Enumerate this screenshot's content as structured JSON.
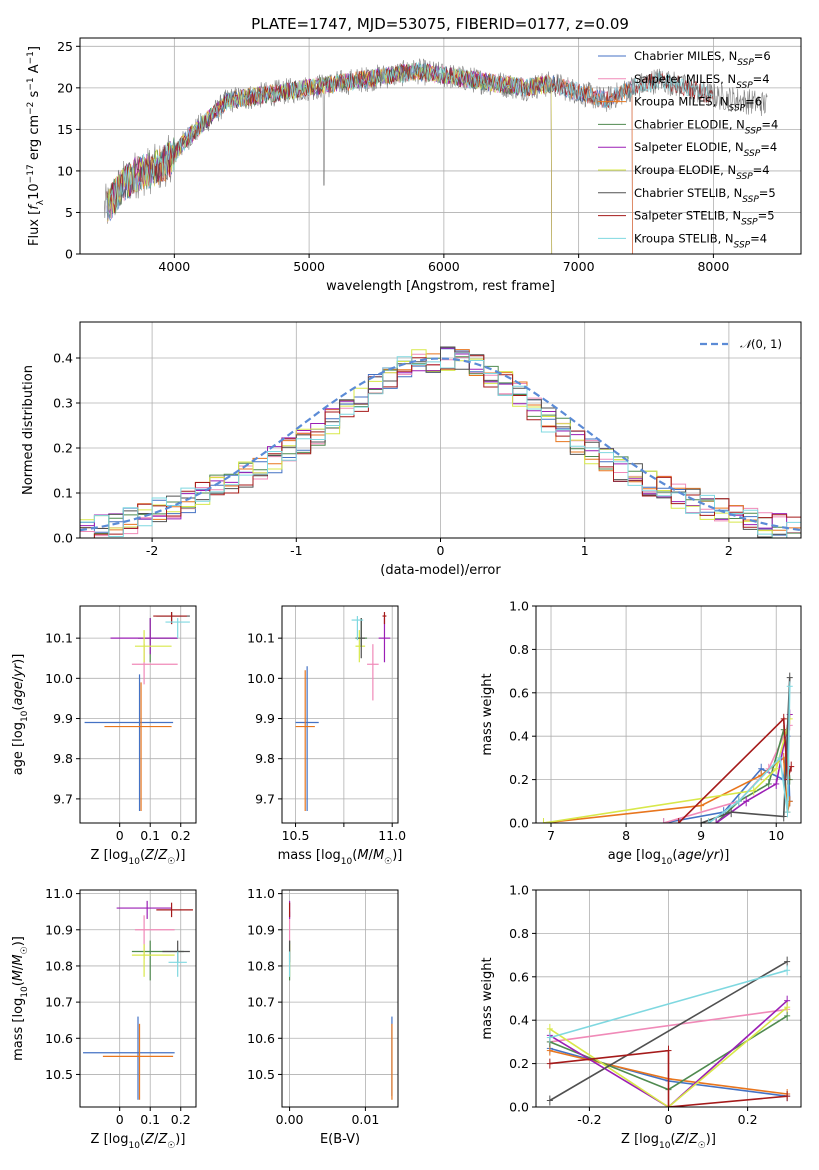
{
  "figure_title": "PLATE=1747, MJD=53075, FIBERID=0177, z=0.09",
  "colors": {
    "Chabrier MILES": "#4472c4",
    "Salpeter MILES": "#f08ab8",
    "Kroupa MILES": "#e8761e",
    "Chabrier ELODIE": "#4f8a4f",
    "Salpeter ELODIE": "#9b1fb5",
    "Kroupa ELODIE": "#d8e84a",
    "Chabrier STELIB": "#505050",
    "Salpeter STELIB": "#a51a1a",
    "Kroupa STELIB": "#7fd8e0"
  },
  "chart_data": [
    {
      "id": "spectrum",
      "type": "line",
      "title": "PLATE=1747, MJD=53075, FIBERID=0177, z=0.09",
      "xlabel": "wavelength [Angstrom, rest frame]",
      "ylabel_tex": "Flux [f_λ 10^-17 erg cm^-2 s^-1 A^-1]",
      "xlim": [
        3300,
        8650
      ],
      "ylim": [
        0,
        26
      ],
      "xticks": [
        4000,
        5000,
        6000,
        7000,
        8000
      ],
      "yticks": [
        0,
        5,
        10,
        15,
        20,
        25
      ],
      "continuum": [
        [
          3500,
          5.5
        ],
        [
          3600,
          8
        ],
        [
          3700,
          9.5
        ],
        [
          3800,
          10
        ],
        [
          3900,
          10.5
        ],
        [
          4000,
          12
        ],
        [
          4100,
          14
        ],
        [
          4200,
          15.5
        ],
        [
          4300,
          17
        ],
        [
          4400,
          18.5
        ],
        [
          4600,
          19
        ],
        [
          4800,
          19.5
        ],
        [
          5000,
          20
        ],
        [
          5200,
          20.5
        ],
        [
          5400,
          21
        ],
        [
          5600,
          21.5
        ],
        [
          5800,
          22
        ],
        [
          6000,
          21.5
        ],
        [
          6200,
          21
        ],
        [
          6400,
          20.5
        ],
        [
          6600,
          20
        ],
        [
          6800,
          20.5
        ],
        [
          7000,
          19.5
        ],
        [
          7200,
          18.5
        ],
        [
          7400,
          20
        ],
        [
          7600,
          21
        ],
        [
          7800,
          20
        ],
        [
          8000,
          19
        ],
        [
          8200,
          18.5
        ],
        [
          8400,
          18
        ]
      ],
      "legend_position": "upper right",
      "series": [
        {
          "name": "Chabrier MILES",
          "nssp": "6",
          "xmax": 7400
        },
        {
          "name": "Salpeter MILES",
          "nssp": "4",
          "xmax": 7400
        },
        {
          "name": "Kroupa MILES",
          "nssp": "6",
          "xmax": 7400
        },
        {
          "name": "Chabrier ELODIE",
          "nssp": "4",
          "xmax": 6800
        },
        {
          "name": "Salpeter ELODIE",
          "nssp": "4",
          "xmax": 6800
        },
        {
          "name": "Kroupa ELODIE",
          "nssp": "4",
          "xmax": 6800
        },
        {
          "name": "Chabrier STELIB",
          "nssp": "5",
          "xmax": 8000
        },
        {
          "name": "Salpeter STELIB",
          "nssp": "5",
          "xmax": 8000
        },
        {
          "name": "Kroupa STELIB",
          "nssp": "4",
          "xmax": 8000
        }
      ]
    },
    {
      "id": "residuals",
      "type": "bar",
      "xlabel": "(data-model)/error",
      "ylabel": "Normed distribution",
      "xlim": [
        -2.5,
        2.5
      ],
      "ylim": [
        0,
        0.48
      ],
      "xticks": [
        -2,
        -1,
        0,
        1,
        2
      ],
      "yticks": [
        0.0,
        0.1,
        0.2,
        0.3,
        0.4
      ],
      "reference_curve": {
        "label_tex": "N(0,1)",
        "type": "gaussian",
        "mu": 0,
        "sigma": 1
      },
      "legend_position": "upper right",
      "bin_edges_range": [
        -2.5,
        2.5
      ],
      "n_bins": 50
    },
    {
      "id": "age_vs_Z",
      "type": "scatter",
      "xlabel": "Z [log10(Z/Z☉)]",
      "ylabel": "age  [log10(age/yr)]",
      "xlim": [
        -0.13,
        0.25
      ],
      "ylim": [
        9.64,
        10.18
      ],
      "xticks": [
        0.0,
        0.1,
        0.2
      ],
      "yticks": [
        9.7,
        9.8,
        9.9,
        10.0,
        10.1
      ],
      "points": [
        {
          "series": "Chabrier MILES",
          "x": 0.065,
          "y": 9.89,
          "xerr": [
            0.18,
            0.11
          ],
          "yerr": [
            0.22,
            0.12
          ]
        },
        {
          "series": "Kroupa MILES",
          "x": 0.07,
          "y": 9.88,
          "xerr": [
            0.12,
            0.1
          ],
          "yerr": [
            0.21,
            0.11
          ]
        },
        {
          "series": "Salpeter MILES",
          "x": 0.08,
          "y": 10.035,
          "xerr": [
            0.04,
            0.11
          ],
          "yerr": [
            0.05,
            0.05
          ]
        },
        {
          "series": "Chabrier ELODIE",
          "x": 0.1,
          "y": 10.1,
          "xerr": [
            0.04,
            0.09
          ],
          "yerr": [
            0.06,
            0.05
          ]
        },
        {
          "series": "Salpeter ELODIE",
          "x": 0.1,
          "y": 10.1,
          "xerr": [
            0.13,
            0.09
          ],
          "yerr": [
            0.04,
            0.05
          ]
        },
        {
          "series": "Kroupa ELODIE",
          "x": 0.08,
          "y": 10.08,
          "xerr": [
            0.03,
            0.09
          ],
          "yerr": [
            0.04,
            0.04
          ]
        },
        {
          "series": "Chabrier STELIB",
          "x": 0.17,
          "y": 10.155,
          "xerr": [
            0.05,
            0.06
          ],
          "yerr": [
            0.02,
            0.01
          ]
        },
        {
          "series": "Salpeter STELIB",
          "x": 0.17,
          "y": 10.155,
          "xerr": [
            0.06,
            0.05
          ],
          "yerr": [
            0.02,
            0.01
          ]
        },
        {
          "series": "Kroupa STELIB",
          "x": 0.19,
          "y": 10.14,
          "xerr": [
            0.04,
            0.04
          ],
          "yerr": [
            0.04,
            0.01
          ]
        }
      ]
    },
    {
      "id": "age_vs_mass",
      "type": "scatter",
      "xlabel": "mass [log10(M/M☉)]",
      "ylabel": "",
      "xlim": [
        10.43,
        11.03
      ],
      "ylim": [
        9.64,
        10.18
      ],
      "xticks": [
        10.5,
        10.75,
        11.0
      ],
      "xticklabels": [
        "10.5",
        "",
        "11.0"
      ],
      "yticks": [
        9.7,
        9.8,
        9.9,
        10.0,
        10.1
      ],
      "points": [
        {
          "series": "Chabrier MILES",
          "x": 10.56,
          "y": 9.89,
          "xerr": [
            0.06,
            0.06
          ],
          "yerr": [
            0.22,
            0.14
          ]
        },
        {
          "series": "Kroupa MILES",
          "x": 10.55,
          "y": 9.88,
          "xerr": [
            0.05,
            0.05
          ],
          "yerr": [
            0.21,
            0.14
          ]
        },
        {
          "series": "Salpeter MILES",
          "x": 10.9,
          "y": 10.035,
          "xerr": [
            0.03,
            0.03
          ],
          "yerr": [
            0.09,
            0.05
          ]
        },
        {
          "series": "Chabrier ELODIE",
          "x": 10.84,
          "y": 10.1,
          "xerr": [
            0.03,
            0.03
          ],
          "yerr": [
            0.02,
            0.05
          ]
        },
        {
          "series": "Salpeter ELODIE",
          "x": 10.96,
          "y": 10.1,
          "xerr": [
            0.03,
            0.03
          ],
          "yerr": [
            0.06,
            0.05
          ]
        },
        {
          "series": "Kroupa ELODIE",
          "x": 10.83,
          "y": 10.08,
          "xerr": [
            0.02,
            0.03
          ],
          "yerr": [
            0.04,
            0.04
          ]
        },
        {
          "series": "Chabrier STELIB",
          "x": 10.84,
          "y": 10.1,
          "xerr": [
            0.02,
            0.02
          ],
          "yerr": [
            0.05,
            0.05
          ]
        },
        {
          "series": "Salpeter STELIB",
          "x": 10.96,
          "y": 10.155,
          "xerr": [
            0.01,
            0.01
          ],
          "yerr": [
            0.02,
            0.01
          ]
        },
        {
          "series": "Kroupa STELIB",
          "x": 10.82,
          "y": 10.145,
          "xerr": [
            0.03,
            0.03
          ],
          "yerr": [
            0.05,
            0.01
          ]
        }
      ]
    },
    {
      "id": "massweight_vs_age",
      "type": "line",
      "xlabel": "age  [log10(age/yr)]",
      "ylabel": "mass weight",
      "xlim": [
        6.8,
        10.33
      ],
      "ylim": [
        0,
        1
      ],
      "xticks": [
        7,
        8,
        9,
        10
      ],
      "yticks": [
        0.0,
        0.2,
        0.4,
        0.6,
        0.8,
        1.0
      ],
      "series": [
        {
          "name": "Chabrier MILES",
          "x": [
            8.5,
            9.3,
            9.8,
            10.1,
            10.15,
            10.18
          ],
          "y": [
            0.0,
            0.05,
            0.25,
            0.2,
            0.4,
            0.1
          ]
        },
        {
          "name": "Salpeter MILES",
          "x": [
            8.5,
            9.5,
            9.9,
            10.1,
            10.18
          ],
          "y": [
            0.0,
            0.1,
            0.25,
            0.4,
            0.45
          ]
        },
        {
          "name": "Kroupa MILES",
          "x": [
            6.9,
            9.0,
            9.8,
            10.1,
            10.15,
            10.18
          ],
          "y": [
            0.0,
            0.08,
            0.22,
            0.3,
            0.05,
            0.1
          ]
        },
        {
          "name": "Chabrier ELODIE",
          "x": [
            9.2,
            9.5,
            9.9,
            10.1,
            10.18
          ],
          "y": [
            0.0,
            0.1,
            0.18,
            0.43,
            0.2
          ]
        },
        {
          "name": "Salpeter ELODIE",
          "x": [
            9.2,
            9.6,
            10.0,
            10.18
          ],
          "y": [
            0.0,
            0.1,
            0.18,
            0.5
          ]
        },
        {
          "name": "Kroupa ELODIE",
          "x": [
            6.9,
            9.7,
            10.0,
            10.18
          ],
          "y": [
            0.0,
            0.15,
            0.25,
            0.48
          ]
        },
        {
          "name": "Chabrier STELIB",
          "x": [
            9.0,
            9.4,
            10.1,
            10.18
          ],
          "y": [
            0.0,
            0.05,
            0.03,
            0.67
          ]
        },
        {
          "name": "Salpeter STELIB",
          "x": [
            8.7,
            10.1,
            10.15,
            10.2
          ],
          "y": [
            0.0,
            0.48,
            0.2,
            0.26
          ]
        },
        {
          "name": "Kroupa STELIB",
          "x": [
            9.1,
            9.5,
            10.05,
            10.15,
            10.18
          ],
          "y": [
            0.0,
            0.1,
            0.3,
            0.05,
            0.63
          ]
        }
      ]
    },
    {
      "id": "mass_vs_Z",
      "type": "scatter",
      "xlabel": "Z [log10(Z/Z☉)]",
      "ylabel": "mass [log10(M/M☉)]",
      "xlim": [
        -0.13,
        0.25
      ],
      "ylim": [
        10.41,
        11.01
      ],
      "xticks": [
        0.0,
        0.1,
        0.2
      ],
      "yticks": [
        10.5,
        10.6,
        10.7,
        10.8,
        10.9,
        11.0
      ],
      "points": [
        {
          "series": "Chabrier MILES",
          "x": 0.06,
          "y": 10.56,
          "xerr": [
            0.18,
            0.12
          ],
          "yerr": [
            0.13,
            0.1
          ]
        },
        {
          "series": "Kroupa MILES",
          "x": 0.065,
          "y": 10.55,
          "xerr": [
            0.12,
            0.11
          ],
          "yerr": [
            0.12,
            0.09
          ]
        },
        {
          "series": "Salpeter MILES",
          "x": 0.08,
          "y": 10.9,
          "xerr": [
            0.03,
            0.1
          ],
          "yerr": [
            0.08,
            0.04
          ]
        },
        {
          "series": "Chabrier ELODIE",
          "x": 0.1,
          "y": 10.84,
          "xerr": [
            0.06,
            0.11
          ],
          "yerr": [
            0.08,
            0.03
          ]
        },
        {
          "series": "Salpeter ELODIE",
          "x": 0.09,
          "y": 10.96,
          "xerr": [
            0.1,
            0.08
          ],
          "yerr": [
            0.03,
            0.02
          ]
        },
        {
          "series": "Kroupa ELODIE",
          "x": 0.08,
          "y": 10.83,
          "xerr": [
            0.04,
            0.1
          ],
          "yerr": [
            0.06,
            0.03
          ]
        },
        {
          "series": "Chabrier STELIB",
          "x": 0.19,
          "y": 10.84,
          "xerr": [
            0.05,
            0.04
          ],
          "yerr": [
            0.03,
            0.03
          ]
        },
        {
          "series": "Salpeter STELIB",
          "x": 0.17,
          "y": 10.955,
          "xerr": [
            0.05,
            0.07
          ],
          "yerr": [
            0.02,
            0.02
          ]
        },
        {
          "series": "Kroupa STELIB",
          "x": 0.19,
          "y": 10.81,
          "xerr": [
            0.03,
            0.03
          ],
          "yerr": [
            0.04,
            0.03
          ]
        }
      ]
    },
    {
      "id": "mass_vs_ebv",
      "type": "scatter",
      "xlabel": "E(B-V)",
      "ylabel": "",
      "xlim": [
        -0.001,
        0.0143
      ],
      "ylim": [
        10.41,
        11.01
      ],
      "xticks": [
        0.0,
        0.01
      ],
      "xticklabels": [
        "0.00",
        "0.01"
      ],
      "yticks": [
        10.5,
        10.6,
        10.7,
        10.8,
        10.9,
        11.0
      ],
      "points": [
        {
          "series": "Chabrier MILES",
          "x": 0.0135,
          "y": 10.55,
          "xerr": [
            0,
            0
          ],
          "yerr": [
            0.11,
            0.11
          ]
        },
        {
          "series": "Kroupa MILES",
          "x": 0.0135,
          "y": 10.52,
          "xerr": [
            0,
            0
          ],
          "yerr": [
            0.09,
            0.12
          ]
        },
        {
          "series": "Salpeter MILES",
          "x": 0.0,
          "y": 10.9,
          "xerr": [
            0,
            0
          ],
          "yerr": [
            0.08,
            0.05
          ]
        },
        {
          "series": "Chabrier ELODIE",
          "x": 0.0,
          "y": 10.84,
          "xerr": [
            0,
            0
          ],
          "yerr": [
            0.08,
            0.03
          ]
        },
        {
          "series": "Salpeter ELODIE",
          "x": 0.0,
          "y": 10.96,
          "xerr": [
            0,
            0
          ],
          "yerr": [
            0.03,
            0.02
          ]
        },
        {
          "series": "Kroupa ELODIE",
          "x": 0.0,
          "y": 10.83,
          "xerr": [
            0,
            0
          ],
          "yerr": [
            0.06,
            0.03
          ]
        },
        {
          "series": "Chabrier STELIB",
          "x": 0.0,
          "y": 10.84,
          "xerr": [
            0,
            0
          ],
          "yerr": [
            0.03,
            0.03
          ]
        },
        {
          "series": "Salpeter STELIB",
          "x": 0.0,
          "y": 10.955,
          "xerr": [
            0,
            0
          ],
          "yerr": [
            0.02,
            0.02
          ]
        },
        {
          "series": "Kroupa STELIB",
          "x": 0.0,
          "y": 10.81,
          "xerr": [
            0,
            0
          ],
          "yerr": [
            0.04,
            0.03
          ]
        }
      ]
    },
    {
      "id": "massweight_vs_Z",
      "type": "line",
      "xlabel": "Z [log10(Z/Z☉)]",
      "ylabel": "mass weight",
      "xlim": [
        -0.335,
        0.335
      ],
      "ylim": [
        0,
        1
      ],
      "xticks": [
        -0.2,
        0.0,
        0.2
      ],
      "yticks": [
        0.0,
        0.2,
        0.4,
        0.6,
        0.8,
        1.0
      ],
      "series": [
        {
          "name": "Chabrier MILES",
          "x": [
            -0.3,
            0.0,
            0.3
          ],
          "y": [
            0.27,
            0.12,
            0.05
          ]
        },
        {
          "name": "Salpeter MILES",
          "x": [
            -0.3,
            0.3
          ],
          "y": [
            0.3,
            0.45
          ]
        },
        {
          "name": "Kroupa MILES",
          "x": [
            -0.3,
            0.0,
            0.3
          ],
          "y": [
            0.26,
            0.13,
            0.06
          ]
        },
        {
          "name": "Chabrier ELODIE",
          "x": [
            -0.3,
            0.0,
            0.3
          ],
          "y": [
            0.3,
            0.08,
            0.42
          ]
        },
        {
          "name": "Salpeter ELODIE",
          "x": [
            -0.3,
            0.0,
            0.3
          ],
          "y": [
            0.33,
            0.0,
            0.49
          ]
        },
        {
          "name": "Kroupa ELODIE",
          "x": [
            -0.3,
            0.0,
            0.3
          ],
          "y": [
            0.36,
            0.0,
            0.46
          ]
        },
        {
          "name": "Chabrier STELIB",
          "x": [
            -0.3,
            0.3
          ],
          "y": [
            0.03,
            0.67
          ]
        },
        {
          "name": "Salpeter STELIB",
          "x": [
            -0.3,
            0.0,
            0.0,
            0.3
          ],
          "y": [
            0.2,
            0.26,
            0.0,
            0.05
          ]
        },
        {
          "name": "Kroupa STELIB",
          "x": [
            -0.3,
            0.3
          ],
          "y": [
            0.32,
            0.63
          ]
        }
      ]
    }
  ]
}
